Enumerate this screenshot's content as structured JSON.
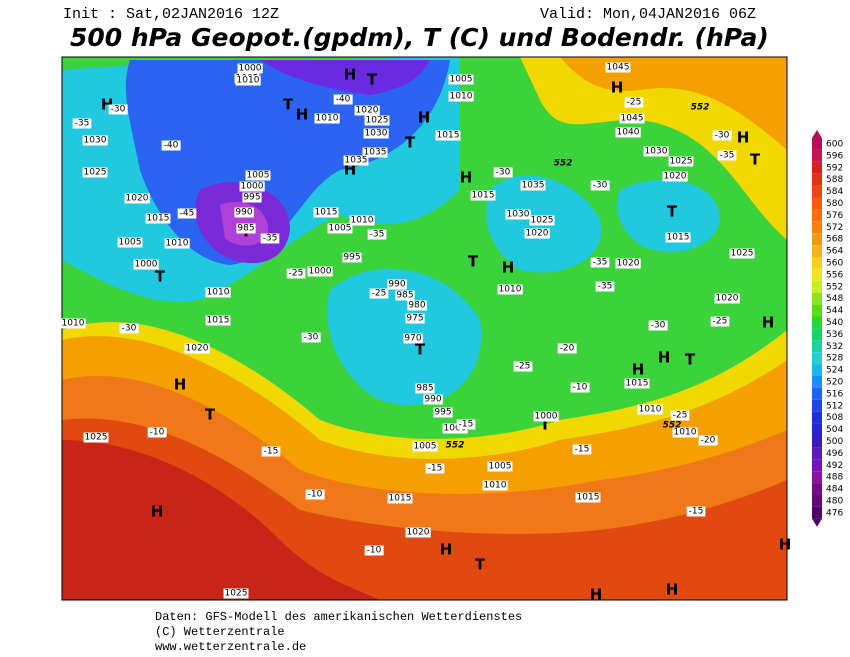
{
  "header": {
    "init": "Init : Sat,02JAN2016 12Z",
    "valid": "Valid: Mon,04JAN2016 06Z",
    "title": "500 hPa Geopot.(gpdm), T (C) und Bodendr. (hPa)"
  },
  "map": {
    "pressure_centers": [
      "H",
      "H",
      "T",
      "H",
      "T",
      "H",
      "H",
      "T",
      "T",
      "T",
      "H",
      "T",
      "H",
      "T",
      "H",
      "T",
      "H",
      "H",
      "T",
      "H",
      "H",
      "H",
      "H",
      "T",
      "T",
      "H",
      "T",
      "H",
      "H",
      "T",
      "H"
    ],
    "isobar_labels": [
      "1030",
      "1025",
      "1020",
      "1015",
      "1010",
      "1005",
      "1000",
      "1010",
      "1015",
      "1020",
      "1025",
      "1010",
      "1005",
      "1000",
      "995",
      "990",
      "985",
      "1000",
      "995",
      "990",
      "985",
      "980",
      "975",
      "970",
      "985",
      "990",
      "995",
      "1000",
      "1005",
      "1010",
      "1005",
      "1015",
      "1020",
      "1015",
      "1025",
      "1000",
      "1015",
      "1010",
      "1010",
      "1020",
      "1015",
      "1020",
      "1025",
      "1030",
      "1040",
      "1045",
      "1045",
      "1020",
      "1025",
      "1035",
      "1030",
      "1025",
      "1020",
      "1015",
      "1010",
      "1015",
      "1010",
      "1005",
      "1015",
      "1010",
      "1020",
      "1025",
      "1030",
      "1035",
      "1035",
      "1010",
      "1005",
      "1000",
      "1005",
      "1010"
    ],
    "temperature_labels": [
      "-30",
      "-35",
      "-40",
      "-45",
      "-35",
      "-25",
      "-30",
      "-30",
      "-25",
      "-35",
      "-40",
      "-30",
      "-30",
      "-35",
      "-35",
      "-30",
      "-25",
      "-30",
      "-35",
      "-25",
      "-20",
      "-25",
      "-20",
      "-10",
      "-15",
      "-15",
      "-15",
      "-15",
      "-10",
      "-10",
      "-15",
      "-10",
      "-25"
    ],
    "height_labels": [
      "552",
      "552",
      "552",
      "552"
    ]
  },
  "legend": {
    "values": [
      600,
      596,
      592,
      588,
      584,
      580,
      576,
      572,
      568,
      564,
      560,
      556,
      552,
      548,
      544,
      540,
      536,
      532,
      528,
      524,
      520,
      516,
      512,
      508,
      504,
      500,
      496,
      492,
      488,
      484,
      480,
      476
    ]
  },
  "footer": {
    "lines": [
      "Daten: GFS-Modell des amerikanischen Wetterdienstes",
      "(C) Wetterzentrale",
      "www.wetterzentrale.de"
    ]
  }
}
